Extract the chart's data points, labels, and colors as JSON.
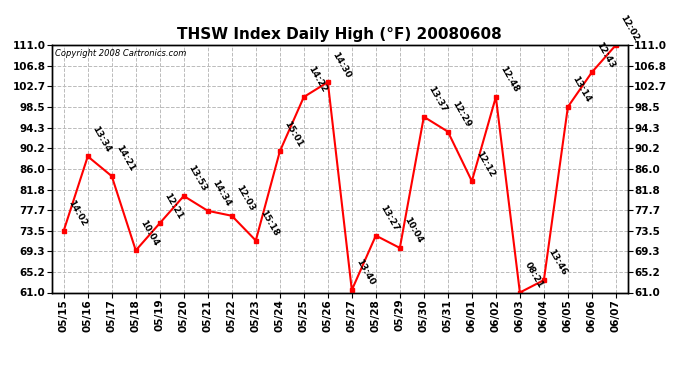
{
  "title": "THSW Index Daily High (°F) 20080608",
  "copyright": "Copyright 2008 Cartronics.com",
  "dates": [
    "05/15",
    "05/16",
    "05/17",
    "05/18",
    "05/19",
    "05/20",
    "05/21",
    "05/22",
    "05/23",
    "05/24",
    "05/25",
    "05/26",
    "05/27",
    "05/28",
    "05/29",
    "05/30",
    "05/31",
    "06/01",
    "06/02",
    "06/03",
    "06/04",
    "06/05",
    "06/06",
    "06/07"
  ],
  "values": [
    73.5,
    88.5,
    84.5,
    69.5,
    75.0,
    80.5,
    77.5,
    76.5,
    71.5,
    89.5,
    100.5,
    103.5,
    61.5,
    72.5,
    70.0,
    96.5,
    93.5,
    83.5,
    100.5,
    61.0,
    63.5,
    98.5,
    105.5,
    111.0
  ],
  "labels": [
    "14:02",
    "13:34",
    "14:21",
    "10:04",
    "12:21",
    "13:53",
    "14:34",
    "12:03",
    "15:18",
    "15:01",
    "14:22",
    "14:30",
    "13:40",
    "13:27",
    "10:04",
    "13:37",
    "12:29",
    "12:12",
    "12:48",
    "08:21",
    "13:46",
    "13:14",
    "12:43",
    "12:02"
  ],
  "ylim": [
    61.0,
    111.0
  ],
  "yticks": [
    61.0,
    65.2,
    69.3,
    73.5,
    77.7,
    81.8,
    86.0,
    90.2,
    94.3,
    98.5,
    102.7,
    106.8,
    111.0
  ],
  "line_color": "#ff0000",
  "marker_color": "#ff0000",
  "bg_color": "#ffffff",
  "grid_color": "#bbbbbb",
  "title_fontsize": 11,
  "label_fontsize": 6.5,
  "tick_fontsize": 7.5,
  "copyright_fontsize": 6
}
